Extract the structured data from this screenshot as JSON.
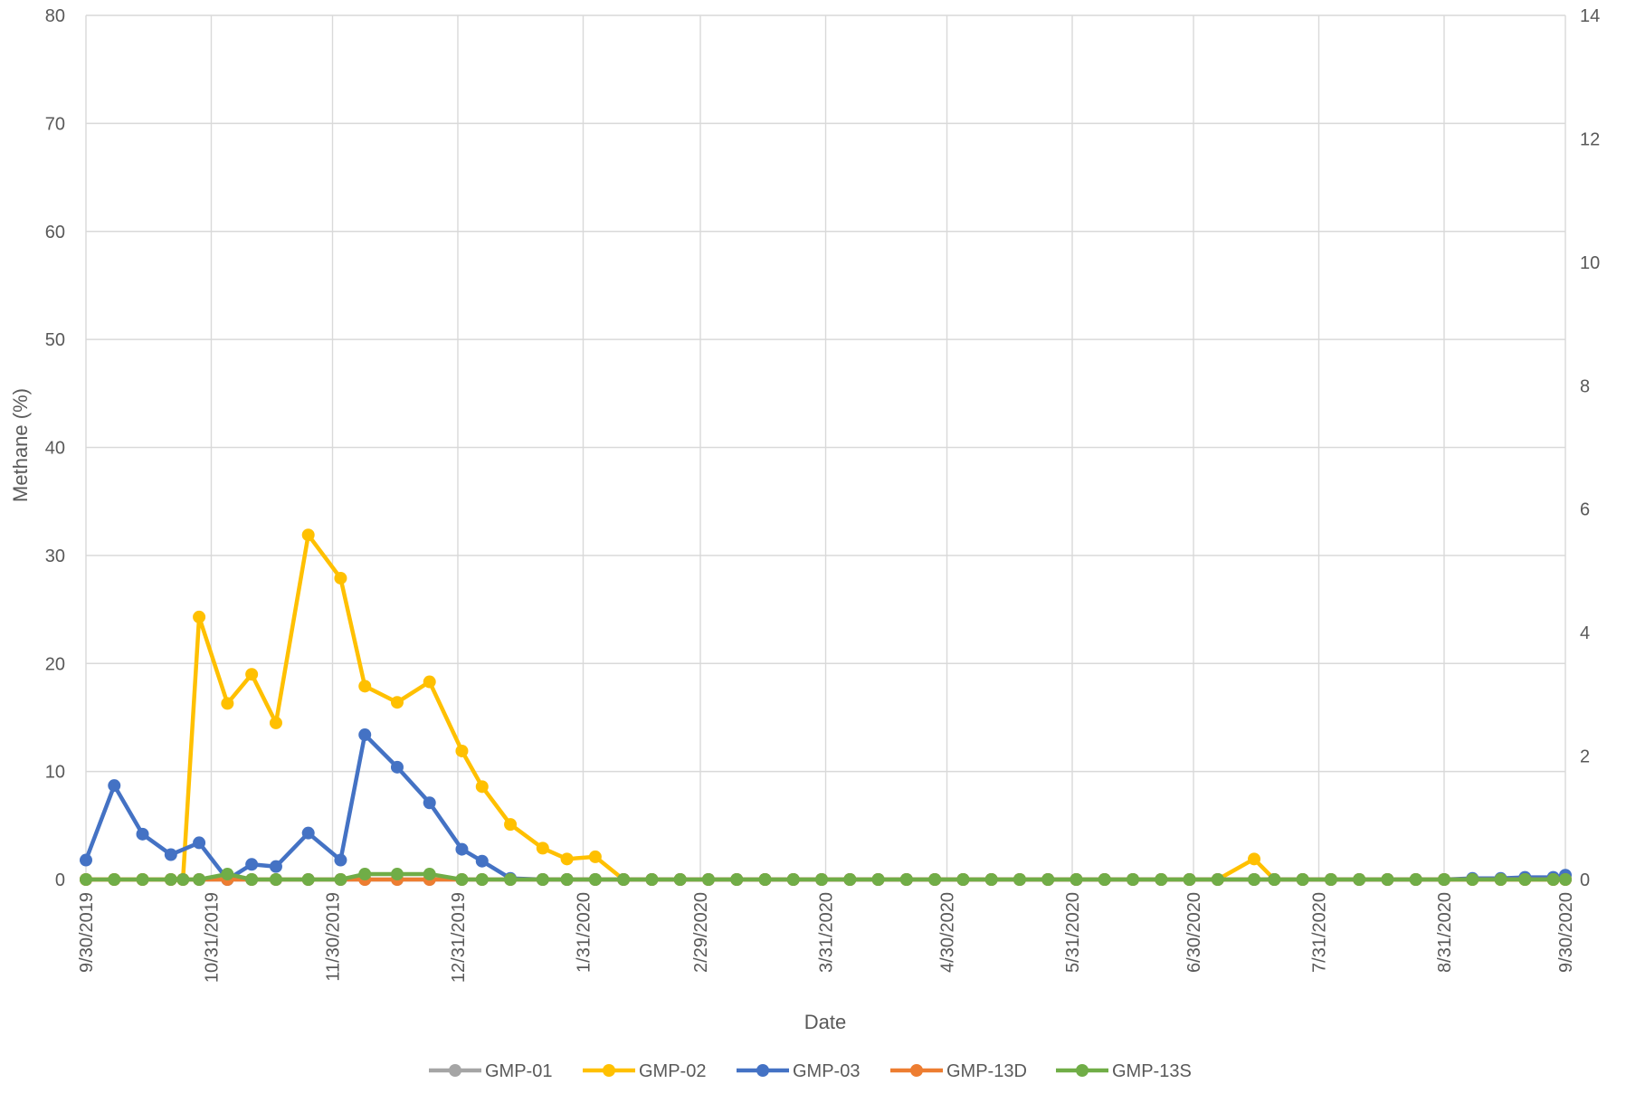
{
  "chart_data": {
    "type": "line",
    "xlabel": "Date",
    "ylabel": "Methane (%)",
    "ylim": [
      0,
      80
    ],
    "y_ticks": [
      0,
      10,
      20,
      30,
      40,
      50,
      60,
      70,
      80
    ],
    "y2lim": [
      0,
      14
    ],
    "y2_ticks": [
      0,
      2,
      4,
      6,
      8,
      10,
      12,
      14
    ],
    "grid": true,
    "legend_position": "bottom",
    "x_range": [
      "2019-09-30",
      "2020-09-30"
    ],
    "x_tick_labels": [
      "9/30/2019",
      "10/31/2019",
      "11/30/2019",
      "12/31/2019",
      "1/31/2020",
      "2/29/2020",
      "3/31/2020",
      "4/30/2020",
      "5/31/2020",
      "6/30/2020",
      "7/31/2020",
      "8/31/2020",
      "9/30/2020"
    ],
    "x_tick_dates": [
      "2019-09-30",
      "2019-10-31",
      "2019-11-30",
      "2019-12-31",
      "2020-01-31",
      "2020-02-29",
      "2020-03-31",
      "2020-04-30",
      "2020-05-31",
      "2020-06-30",
      "2020-07-31",
      "2020-08-31",
      "2020-09-30"
    ],
    "series": [
      {
        "name": "GMP-01",
        "color": "#a5a5a5",
        "points": [
          [
            "2019-09-30",
            0
          ],
          [
            "2019-10-07",
            0
          ],
          [
            "2019-10-14",
            0
          ],
          [
            "2019-10-21",
            0
          ],
          [
            "2019-10-24",
            0
          ],
          [
            "2019-10-28",
            0
          ],
          [
            "2019-11-04",
            0
          ],
          [
            "2019-11-10",
            0
          ],
          [
            "2019-11-16",
            0
          ],
          [
            "2019-11-24",
            0
          ],
          [
            "2019-12-02",
            0
          ],
          [
            "2019-12-08",
            0
          ],
          [
            "2019-12-16",
            0
          ],
          [
            "2019-12-24",
            0
          ],
          [
            "2020-01-01",
            0
          ],
          [
            "2020-01-06",
            0
          ],
          [
            "2020-01-13",
            0
          ],
          [
            "2020-01-21",
            0
          ],
          [
            "2020-01-27",
            0
          ],
          [
            "2020-02-03",
            0
          ],
          [
            "2020-02-10",
            0
          ],
          [
            "2020-02-17",
            0
          ],
          [
            "2020-02-24",
            0
          ],
          [
            "2020-03-02",
            0
          ],
          [
            "2020-03-09",
            0
          ],
          [
            "2020-03-16",
            0
          ],
          [
            "2020-03-23",
            0
          ],
          [
            "2020-03-30",
            0
          ],
          [
            "2020-04-06",
            0
          ],
          [
            "2020-04-13",
            0
          ],
          [
            "2020-04-20",
            0
          ],
          [
            "2020-04-27",
            0
          ],
          [
            "2020-05-04",
            0
          ],
          [
            "2020-05-11",
            0
          ],
          [
            "2020-05-18",
            0
          ],
          [
            "2020-05-25",
            0
          ],
          [
            "2020-06-01",
            0
          ],
          [
            "2020-06-08",
            0
          ],
          [
            "2020-06-15",
            0
          ],
          [
            "2020-06-22",
            0
          ],
          [
            "2020-06-29",
            0
          ],
          [
            "2020-07-06",
            0
          ],
          [
            "2020-07-15",
            0
          ],
          [
            "2020-07-20",
            0
          ],
          [
            "2020-07-27",
            0
          ],
          [
            "2020-08-03",
            0
          ],
          [
            "2020-08-10",
            0
          ],
          [
            "2020-08-17",
            0
          ],
          [
            "2020-08-24",
            0
          ],
          [
            "2020-08-31",
            0
          ],
          [
            "2020-09-07",
            0
          ],
          [
            "2020-09-14",
            0
          ],
          [
            "2020-09-20",
            0
          ],
          [
            "2020-09-27",
            0
          ],
          [
            "2020-09-30",
            0
          ]
        ]
      },
      {
        "name": "GMP-02",
        "color": "#ffc000",
        "points": [
          [
            "2019-09-30",
            0
          ],
          [
            "2019-10-07",
            0
          ],
          [
            "2019-10-14",
            0
          ],
          [
            "2019-10-21",
            0
          ],
          [
            "2019-10-24",
            0
          ],
          [
            "2019-10-28",
            24.3
          ],
          [
            "2019-11-04",
            16.3
          ],
          [
            "2019-11-10",
            19
          ],
          [
            "2019-11-16",
            14.5
          ],
          [
            "2019-11-24",
            31.9
          ],
          [
            "2019-12-02",
            27.9
          ],
          [
            "2019-12-08",
            17.9
          ],
          [
            "2019-12-16",
            16.4
          ],
          [
            "2019-12-24",
            18.3
          ],
          [
            "2020-01-01",
            11.9
          ],
          [
            "2020-01-06",
            8.6
          ],
          [
            "2020-01-13",
            5.1
          ],
          [
            "2020-01-21",
            2.9
          ],
          [
            "2020-01-27",
            1.9
          ],
          [
            "2020-02-03",
            2.1
          ],
          [
            "2020-02-10",
            0
          ],
          [
            "2020-02-17",
            0
          ],
          [
            "2020-02-24",
            0
          ],
          [
            "2020-03-02",
            0
          ],
          [
            "2020-03-09",
            0
          ],
          [
            "2020-03-16",
            0
          ],
          [
            "2020-03-23",
            0
          ],
          [
            "2020-03-30",
            0
          ],
          [
            "2020-04-06",
            0
          ],
          [
            "2020-04-13",
            0
          ],
          [
            "2020-04-20",
            0
          ],
          [
            "2020-04-27",
            0
          ],
          [
            "2020-05-04",
            0
          ],
          [
            "2020-05-11",
            0
          ],
          [
            "2020-05-18",
            0
          ],
          [
            "2020-05-25",
            0
          ],
          [
            "2020-06-01",
            0
          ],
          [
            "2020-06-08",
            0
          ],
          [
            "2020-06-15",
            0
          ],
          [
            "2020-06-22",
            0
          ],
          [
            "2020-06-29",
            0
          ],
          [
            "2020-07-06",
            0
          ],
          [
            "2020-07-15",
            1.9
          ],
          [
            "2020-07-20",
            0
          ],
          [
            "2020-07-27",
            0
          ],
          [
            "2020-08-03",
            0
          ],
          [
            "2020-08-10",
            0
          ],
          [
            "2020-08-17",
            0
          ],
          [
            "2020-08-24",
            0
          ],
          [
            "2020-08-31",
            0
          ],
          [
            "2020-09-07",
            0
          ],
          [
            "2020-09-14",
            0
          ],
          [
            "2020-09-20",
            0
          ],
          [
            "2020-09-27",
            0
          ],
          [
            "2020-09-30",
            0
          ]
        ]
      },
      {
        "name": "GMP-03",
        "color": "#4472c4",
        "points": [
          [
            "2019-09-30",
            1.8
          ],
          [
            "2019-10-07",
            8.7
          ],
          [
            "2019-10-14",
            4.2
          ],
          [
            "2019-10-21",
            2.3
          ],
          [
            "2019-10-28",
            3.4
          ],
          [
            "2019-11-04",
            0
          ],
          [
            "2019-11-10",
            1.4
          ],
          [
            "2019-11-16",
            1.2
          ],
          [
            "2019-11-24",
            4.3
          ],
          [
            "2019-12-02",
            1.8
          ],
          [
            "2019-12-08",
            13.4
          ],
          [
            "2019-12-16",
            10.4
          ],
          [
            "2019-12-24",
            7.1
          ],
          [
            "2020-01-01",
            2.8
          ],
          [
            "2020-01-06",
            1.7
          ],
          [
            "2020-01-13",
            0.1
          ],
          [
            "2020-01-21",
            0
          ],
          [
            "2020-01-27",
            0
          ],
          [
            "2020-02-03",
            0
          ],
          [
            "2020-02-10",
            0
          ],
          [
            "2020-02-17",
            0
          ],
          [
            "2020-02-24",
            0
          ],
          [
            "2020-03-02",
            0
          ],
          [
            "2020-03-09",
            0
          ],
          [
            "2020-03-16",
            0
          ],
          [
            "2020-03-23",
            0
          ],
          [
            "2020-03-30",
            0
          ],
          [
            "2020-04-06",
            0
          ],
          [
            "2020-04-13",
            0
          ],
          [
            "2020-04-20",
            0
          ],
          [
            "2020-04-27",
            0
          ],
          [
            "2020-05-04",
            0
          ],
          [
            "2020-05-11",
            0
          ],
          [
            "2020-05-18",
            0
          ],
          [
            "2020-05-25",
            0
          ],
          [
            "2020-06-01",
            0
          ],
          [
            "2020-06-08",
            0
          ],
          [
            "2020-06-15",
            0
          ],
          [
            "2020-06-22",
            0
          ],
          [
            "2020-06-29",
            0
          ],
          [
            "2020-07-06",
            0
          ],
          [
            "2020-07-15",
            0
          ],
          [
            "2020-07-20",
            0
          ],
          [
            "2020-07-27",
            0
          ],
          [
            "2020-08-03",
            0
          ],
          [
            "2020-08-10",
            0
          ],
          [
            "2020-08-17",
            0
          ],
          [
            "2020-08-24",
            0
          ],
          [
            "2020-08-31",
            0
          ],
          [
            "2020-09-07",
            0.1
          ],
          [
            "2020-09-14",
            0.1
          ],
          [
            "2020-09-20",
            0.2
          ],
          [
            "2020-09-27",
            0.2
          ],
          [
            "2020-09-30",
            0.4
          ]
        ]
      },
      {
        "name": "GMP-13D",
        "color": "#ed7d31",
        "points": [
          [
            "2019-09-30",
            0
          ],
          [
            "2019-10-07",
            0
          ],
          [
            "2019-10-14",
            0
          ],
          [
            "2019-10-21",
            0
          ],
          [
            "2019-10-24",
            0
          ],
          [
            "2019-10-28",
            0
          ],
          [
            "2019-11-04",
            0
          ],
          [
            "2019-11-10",
            0
          ],
          [
            "2019-11-16",
            0
          ],
          [
            "2019-11-24",
            0
          ],
          [
            "2019-12-02",
            0
          ],
          [
            "2019-12-08",
            0
          ],
          [
            "2019-12-16",
            0
          ],
          [
            "2019-12-24",
            0
          ],
          [
            "2020-01-01",
            0
          ],
          [
            "2020-01-06",
            0
          ],
          [
            "2020-01-13",
            0
          ],
          [
            "2020-01-21",
            0
          ],
          [
            "2020-01-27",
            0
          ],
          [
            "2020-02-03",
            0
          ],
          [
            "2020-02-10",
            0
          ],
          [
            "2020-02-17",
            0
          ],
          [
            "2020-02-24",
            0
          ],
          [
            "2020-03-02",
            0
          ],
          [
            "2020-03-09",
            0
          ],
          [
            "2020-03-16",
            0
          ],
          [
            "2020-03-23",
            0
          ],
          [
            "2020-03-30",
            0
          ],
          [
            "2020-04-06",
            0
          ],
          [
            "2020-04-13",
            0
          ],
          [
            "2020-04-20",
            0
          ],
          [
            "2020-04-27",
            0
          ],
          [
            "2020-05-04",
            0
          ],
          [
            "2020-05-11",
            0
          ],
          [
            "2020-05-18",
            0
          ],
          [
            "2020-05-25",
            0
          ],
          [
            "2020-06-01",
            0
          ],
          [
            "2020-06-08",
            0
          ],
          [
            "2020-06-15",
            0
          ],
          [
            "2020-06-22",
            0
          ],
          [
            "2020-06-29",
            0
          ],
          [
            "2020-07-06",
            0
          ],
          [
            "2020-07-15",
            0
          ],
          [
            "2020-07-20",
            0
          ],
          [
            "2020-07-27",
            0
          ],
          [
            "2020-08-03",
            0
          ],
          [
            "2020-08-10",
            0
          ],
          [
            "2020-08-17",
            0
          ],
          [
            "2020-08-24",
            0
          ],
          [
            "2020-08-31",
            0
          ],
          [
            "2020-09-07",
            0
          ],
          [
            "2020-09-14",
            0
          ],
          [
            "2020-09-20",
            0
          ],
          [
            "2020-09-27",
            0
          ],
          [
            "2020-09-30",
            0
          ]
        ]
      },
      {
        "name": "GMP-13S",
        "color": "#70ad47",
        "points": [
          [
            "2019-09-30",
            0
          ],
          [
            "2019-10-07",
            0
          ],
          [
            "2019-10-14",
            0
          ],
          [
            "2019-10-21",
            0
          ],
          [
            "2019-10-24",
            0
          ],
          [
            "2019-10-28",
            0
          ],
          [
            "2019-11-04",
            0.5
          ],
          [
            "2019-11-10",
            0
          ],
          [
            "2019-11-16",
            0
          ],
          [
            "2019-11-24",
            0
          ],
          [
            "2019-12-02",
            0
          ],
          [
            "2019-12-08",
            0.5
          ],
          [
            "2019-12-16",
            0.5
          ],
          [
            "2019-12-24",
            0.5
          ],
          [
            "2020-01-01",
            0
          ],
          [
            "2020-01-06",
            0
          ],
          [
            "2020-01-13",
            0
          ],
          [
            "2020-01-21",
            0
          ],
          [
            "2020-01-27",
            0
          ],
          [
            "2020-02-03",
            0
          ],
          [
            "2020-02-10",
            0
          ],
          [
            "2020-02-17",
            0
          ],
          [
            "2020-02-24",
            0
          ],
          [
            "2020-03-02",
            0
          ],
          [
            "2020-03-09",
            0
          ],
          [
            "2020-03-16",
            0
          ],
          [
            "2020-03-23",
            0
          ],
          [
            "2020-03-30",
            0
          ],
          [
            "2020-04-06",
            0
          ],
          [
            "2020-04-13",
            0
          ],
          [
            "2020-04-20",
            0
          ],
          [
            "2020-04-27",
            0
          ],
          [
            "2020-05-04",
            0
          ],
          [
            "2020-05-11",
            0
          ],
          [
            "2020-05-18",
            0
          ],
          [
            "2020-05-25",
            0
          ],
          [
            "2020-06-01",
            0
          ],
          [
            "2020-06-08",
            0
          ],
          [
            "2020-06-15",
            0
          ],
          [
            "2020-06-22",
            0
          ],
          [
            "2020-06-29",
            0
          ],
          [
            "2020-07-06",
            0
          ],
          [
            "2020-07-15",
            0
          ],
          [
            "2020-07-20",
            0
          ],
          [
            "2020-07-27",
            0
          ],
          [
            "2020-08-03",
            0
          ],
          [
            "2020-08-10",
            0
          ],
          [
            "2020-08-17",
            0
          ],
          [
            "2020-08-24",
            0
          ],
          [
            "2020-08-31",
            0
          ],
          [
            "2020-09-07",
            0
          ],
          [
            "2020-09-14",
            0
          ],
          [
            "2020-09-20",
            0
          ],
          [
            "2020-09-27",
            0
          ],
          [
            "2020-09-30",
            0
          ]
        ]
      }
    ]
  }
}
